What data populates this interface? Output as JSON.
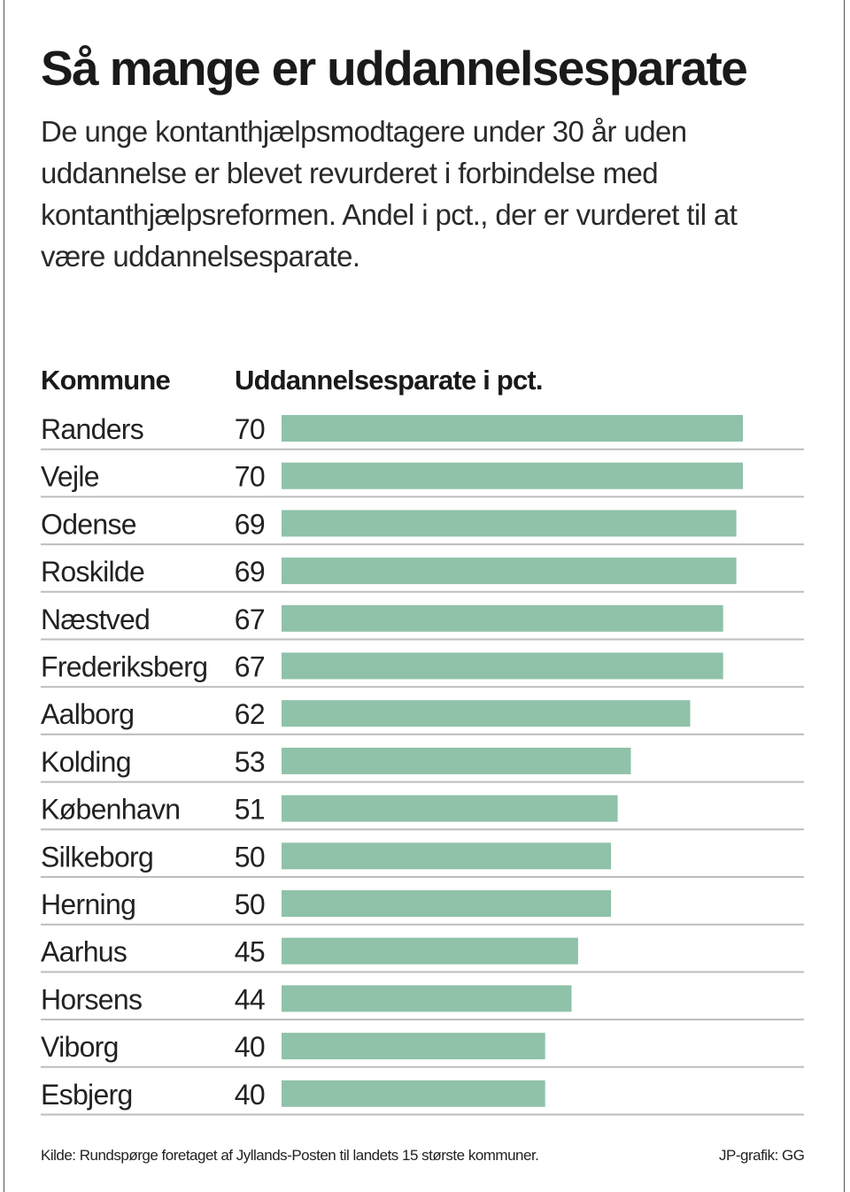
{
  "title": "Så mange er uddannelsesparate",
  "subtitle": "De unge kontanthjælpsmodtagere under 30 år uden uddannelse er blevet revurderet i forbindelse med kontanthjælpsreformen. Andel i pct., der er vurderet til at være uddannelsesparate.",
  "headers": {
    "kommune": "Kommune",
    "value": "Uddannelsesparate i pct."
  },
  "footer": {
    "source": "Kilde: Rundspørge foretaget af Jyllands-Posten til landets 15 største kommuner.",
    "credit": "JP-grafik: GG"
  },
  "colors": {
    "bar": "#8fc2a8",
    "divider": "#bdbdbd"
  },
  "chart_data": {
    "type": "bar",
    "orientation": "horizontal",
    "categories": [
      "Randers",
      "Vejle",
      "Odense",
      "Roskilde",
      "Næstved",
      "Frederiksberg",
      "Aalborg",
      "Kolding",
      "København",
      "Silkeborg",
      "Herning",
      "Aarhus",
      "Horsens",
      "Viborg",
      "Esbjerg"
    ],
    "values": [
      70,
      70,
      69,
      69,
      67,
      67,
      62,
      53,
      51,
      50,
      50,
      45,
      44,
      40,
      40
    ],
    "xlim": [
      0,
      70
    ],
    "grid": false,
    "legend": "none"
  }
}
